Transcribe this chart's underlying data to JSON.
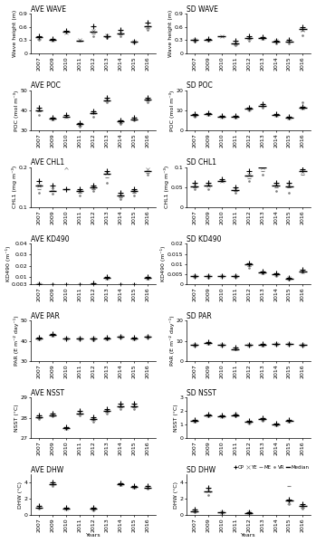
{
  "years": [
    2007,
    2009,
    2010,
    2011,
    2012,
    2013,
    2014,
    2015,
    2016
  ],
  "year_labels": [
    "2007",
    "2009",
    "2010",
    "2011",
    "2012",
    "2013",
    "2014",
    "2015",
    "2016"
  ],
  "panels": [
    {
      "title_left": "AVE WAVE",
      "title_right": "SD WAVE",
      "ylabel_left": "Wave height (m)",
      "ylabel_right": "Wave height (m)",
      "ylim_left": [
        0.0,
        0.9
      ],
      "ylim_right": [
        0.0,
        0.9
      ],
      "yticks_left": [
        0.0,
        0.3,
        0.6,
        0.9
      ],
      "yticks_right": [
        0.0,
        0.3,
        0.6,
        0.9
      ],
      "data_left": {
        "CP": [
          0.38,
          0.32,
          0.5,
          null,
          0.62,
          0.38,
          0.52,
          0.27,
          0.7
        ],
        "YE": [
          0.35,
          0.31,
          0.46,
          0.3,
          0.5,
          0.4,
          0.46,
          0.27,
          0.6
        ],
        "ME": [
          0.33,
          null,
          null,
          0.29,
          0.44,
          0.36,
          0.42,
          0.26,
          0.57
        ],
        "VR": [
          0.3,
          0.3,
          null,
          0.28,
          0.38,
          0.34,
          0.38,
          0.25,
          0.53
        ],
        "median": [
          0.37,
          0.31,
          0.48,
          0.29,
          0.49,
          0.38,
          0.45,
          0.26,
          0.62
        ]
      },
      "data_right": {
        "CP": [
          0.31,
          0.32,
          null,
          0.28,
          0.38,
          0.36,
          0.29,
          0.31,
          0.6
        ],
        "YE": [
          0.3,
          0.31,
          0.38,
          0.22,
          0.35,
          0.35,
          0.28,
          0.28,
          0.53
        ],
        "ME": [
          0.29,
          null,
          null,
          0.2,
          0.32,
          0.34,
          0.26,
          0.26,
          0.5
        ],
        "VR": [
          0.27,
          0.29,
          null,
          0.18,
          0.28,
          0.32,
          0.23,
          0.22,
          0.4
        ],
        "median": [
          0.3,
          0.31,
          0.38,
          0.22,
          0.34,
          0.35,
          0.27,
          0.27,
          0.54
        ]
      }
    },
    {
      "title_left": "AVE POC",
      "title_right": "SD POC",
      "ylabel_left": "POC (mol m⁻³)",
      "ylabel_right": "POC (mol m⁻³)",
      "ylim_left": [
        30,
        50
      ],
      "ylim_right": [
        0,
        20
      ],
      "yticks_left": [
        30,
        40,
        50
      ],
      "yticks_right": [
        0,
        10,
        20
      ],
      "data_left": {
        "CP": [
          41.5,
          36.5,
          37.5,
          33.5,
          39.5,
          46.0,
          35.0,
          36.5,
          46.0
        ],
        "YE": [
          40.5,
          36.0,
          37.0,
          33.0,
          39.0,
          45.5,
          34.5,
          36.0,
          45.5
        ],
        "ME": [
          39.5,
          null,
          null,
          32.5,
          38.5,
          45.0,
          33.5,
          35.5,
          45.0
        ],
        "VR": [
          37.5,
          35.5,
          null,
          32.0,
          37.0,
          44.0,
          33.0,
          35.0,
          44.0
        ],
        "median": [
          40.0,
          36.0,
          37.0,
          33.0,
          38.5,
          45.0,
          34.5,
          35.5,
          45.5
        ]
      },
      "data_right": {
        "CP": [
          8.0,
          8.8,
          7.2,
          7.2,
          11.5,
          13.0,
          8.2,
          6.8,
          11.8
        ],
        "YE": [
          7.5,
          8.3,
          7.0,
          7.0,
          11.0,
          12.5,
          7.8,
          6.5,
          11.2
        ],
        "ME": [
          7.2,
          null,
          null,
          6.7,
          10.5,
          12.0,
          7.5,
          6.2,
          10.8
        ],
        "VR": [
          7.0,
          7.5,
          null,
          6.3,
          10.0,
          11.5,
          7.2,
          6.0,
          14.0
        ],
        "median": [
          7.5,
          8.2,
          7.0,
          7.0,
          11.0,
          12.3,
          7.8,
          6.5,
          11.3
        ]
      }
    },
    {
      "title_left": "AVE CHL1",
      "title_right": "SD CHL1",
      "ylabel_left": "CHL1 (mg m⁻³)",
      "ylabel_right": "CHL1 (mg m⁻³)",
      "ylim_left": [
        0.1,
        0.2
      ],
      "ylim_right": [
        0.0,
        0.1
      ],
      "yticks_left": [
        0.1,
        0.2
      ],
      "yticks_right": [
        0.0,
        0.05,
        0.1
      ],
      "data_left": {
        "CP": [
          0.165,
          0.155,
          0.145,
          0.145,
          0.155,
          0.19,
          0.135,
          0.145,
          0.21
        ],
        "YE": [
          0.155,
          0.145,
          0.2,
          0.14,
          0.15,
          0.185,
          0.13,
          0.14,
          0.195
        ],
        "ME": [
          0.145,
          null,
          null,
          0.135,
          0.145,
          0.175,
          0.125,
          0.135,
          0.185
        ],
        "VR": [
          0.135,
          0.133,
          null,
          0.13,
          0.14,
          0.16,
          0.12,
          0.13,
          0.18
        ],
        "median": [
          0.155,
          0.14,
          0.145,
          0.14,
          0.15,
          0.183,
          0.13,
          0.14,
          0.19
        ]
      },
      "data_right": {
        "CP": [
          0.06,
          0.06,
          0.07,
          0.05,
          0.09,
          0.105,
          0.06,
          0.06,
          0.095
        ],
        "YE": [
          0.055,
          0.055,
          0.065,
          0.045,
          0.08,
          0.098,
          0.055,
          0.055,
          0.088
        ],
        "ME": [
          0.05,
          null,
          null,
          0.04,
          0.072,
          0.09,
          0.05,
          0.05,
          0.082
        ],
        "VR": [
          0.045,
          0.045,
          null,
          0.035,
          0.065,
          0.08,
          0.04,
          0.035,
          0.12
        ],
        "median": [
          0.052,
          0.055,
          0.065,
          0.042,
          0.078,
          0.098,
          0.053,
          0.052,
          0.09
        ]
      }
    },
    {
      "title_left": "AVE KD490",
      "title_right": "SD KD490",
      "ylabel_left": "KD490 (m⁻¹)",
      "ylabel_right": "KD490 (m⁻¹)",
      "ylim_left": [
        0.003,
        0.04
      ],
      "ylim_right": [
        0.0,
        0.02
      ],
      "yticks_left": [
        0.003,
        0.01,
        0.02,
        0.03,
        0.04
      ],
      "yticks_right": [
        0.0,
        0.005,
        0.01,
        0.015,
        0.02
      ],
      "data_left": {
        "CP": [
          0.0033,
          0.0026,
          0.0026,
          0.0021,
          0.0036,
          0.01,
          0.0026,
          0.0026,
          0.01
        ],
        "YE": [
          0.0031,
          0.0025,
          0.0025,
          0.002,
          0.0032,
          0.009,
          0.0025,
          0.0025,
          0.009
        ],
        "ME": [
          0.0029,
          null,
          null,
          0.0021,
          0.003,
          0.0085,
          0.0023,
          0.0024,
          0.0085
        ],
        "VR": [
          0.0028,
          0.0023,
          null,
          0.002,
          0.0028,
          0.008,
          0.0022,
          0.0023,
          0.0082
        ],
        "median": [
          0.003,
          0.0025,
          0.0025,
          0.0021,
          0.0031,
          0.009,
          0.0024,
          0.0025,
          0.009
        ]
      },
      "data_right": {
        "CP": [
          0.0042,
          0.0042,
          0.0042,
          0.0042,
          0.0102,
          0.0062,
          0.0052,
          0.0032,
          0.0072
        ],
        "YE": [
          0.004,
          0.004,
          0.004,
          0.004,
          0.0098,
          0.006,
          0.005,
          0.003,
          0.0065
        ],
        "ME": [
          0.0038,
          null,
          null,
          0.0038,
          0.009,
          0.0057,
          0.0048,
          0.0028,
          0.0062
        ],
        "VR": [
          0.0035,
          0.0032,
          null,
          0.0036,
          0.0082,
          0.0052,
          0.004,
          0.0022,
          0.0058
        ],
        "median": [
          0.004,
          0.004,
          0.004,
          0.004,
          0.0097,
          0.0059,
          0.0049,
          0.0029,
          0.0065
        ]
      }
    },
    {
      "title_left": "AVE PAR",
      "title_right": "SD PAR",
      "ylabel_left": "PAR (E m⁻² day⁻¹)",
      "ylabel_right": "PAR (E m⁻² day⁻¹)",
      "ylim_left": [
        30,
        50
      ],
      "ylim_right": [
        0,
        20
      ],
      "yticks_left": [
        30,
        40,
        50
      ],
      "yticks_right": [
        0,
        10,
        20
      ],
      "data_left": {
        "CP": [
          41.5,
          43.5,
          41.2,
          41.0,
          41.2,
          41.5,
          42.2,
          41.5,
          42.2
        ],
        "YE": [
          41.2,
          43.0,
          41.0,
          41.0,
          41.0,
          41.2,
          42.0,
          41.2,
          42.0
        ],
        "ME": [
          41.0,
          null,
          null,
          41.0,
          40.8,
          41.0,
          41.8,
          41.0,
          41.8
        ],
        "VR": [
          40.8,
          42.5,
          41.0,
          40.8,
          40.5,
          40.8,
          41.5,
          40.8,
          41.5
        ],
        "median": [
          41.0,
          43.0,
          41.0,
          41.0,
          41.0,
          41.0,
          42.0,
          41.0,
          42.0
        ]
      },
      "data_right": {
        "CP": [
          8.2,
          9.2,
          8.2,
          6.5,
          8.2,
          8.5,
          8.7,
          8.7,
          8.2
        ],
        "YE": [
          8.0,
          9.0,
          8.0,
          6.2,
          8.0,
          8.2,
          8.5,
          8.5,
          8.0
        ],
        "ME": [
          7.8,
          null,
          null,
          6.0,
          7.8,
          8.0,
          8.2,
          8.3,
          7.8
        ],
        "VR": [
          7.5,
          8.5,
          7.8,
          5.8,
          7.5,
          7.8,
          8.0,
          8.0,
          7.5
        ],
        "median": [
          8.0,
          9.0,
          8.0,
          6.0,
          8.0,
          8.2,
          8.5,
          8.5,
          8.0
        ]
      }
    },
    {
      "title_left": "AVE NSST",
      "title_right": "SD NSST",
      "ylabel_left": "NSST (°C)",
      "ylabel_right": "NSST (°C)",
      "ylim_left": [
        27,
        29
      ],
      "ylim_right": [
        0,
        3
      ],
      "yticks_left": [
        27,
        28,
        29
      ],
      "yticks_right": [
        0,
        1,
        2,
        3
      ],
      "data_left": {
        "CP": [
          28.12,
          28.22,
          27.55,
          28.32,
          28.02,
          28.42,
          28.68,
          28.68,
          null
        ],
        "YE": [
          28.05,
          28.15,
          27.5,
          28.25,
          27.95,
          28.35,
          28.6,
          28.6,
          null
        ],
        "ME": [
          28.0,
          null,
          null,
          28.2,
          27.9,
          28.3,
          28.52,
          28.52,
          null
        ],
        "VR": [
          27.95,
          28.05,
          27.45,
          28.1,
          27.82,
          28.22,
          28.45,
          28.45,
          null
        ],
        "median": [
          28.02,
          28.13,
          27.5,
          28.22,
          27.92,
          28.33,
          28.57,
          28.57,
          null
        ]
      },
      "data_right": {
        "CP": [
          1.35,
          1.75,
          1.65,
          1.75,
          1.25,
          1.45,
          1.05,
          1.35,
          null
        ],
        "YE": [
          1.3,
          1.7,
          1.62,
          1.72,
          1.2,
          1.4,
          1.0,
          1.3,
          null
        ],
        "ME": [
          1.25,
          null,
          null,
          1.68,
          1.15,
          1.35,
          0.98,
          1.25,
          null
        ],
        "VR": [
          1.2,
          1.62,
          1.58,
          1.62,
          1.1,
          1.28,
          0.95,
          1.22,
          null
        ],
        "median": [
          1.27,
          1.68,
          1.62,
          1.7,
          1.18,
          1.38,
          1.0,
          1.28,
          null
        ]
      }
    },
    {
      "title_left": "AVE DHW",
      "title_right": "SD DHW",
      "ylabel_left": "DHW (°C)",
      "ylabel_right": "DHW (°C)",
      "ylim_left": [
        0,
        5
      ],
      "ylim_right": [
        0,
        5
      ],
      "yticks_left": [
        0,
        2,
        4
      ],
      "yticks_right": [
        0,
        2,
        4
      ],
      "data_left": {
        "CP": [
          1.05,
          4.05,
          0.85,
          null,
          0.85,
          null,
          3.85,
          3.6,
          3.55
        ],
        "YE": [
          0.95,
          3.85,
          0.75,
          null,
          0.75,
          null,
          3.8,
          3.5,
          3.45
        ],
        "ME": [
          0.85,
          null,
          null,
          null,
          0.65,
          null,
          3.75,
          3.4,
          3.35
        ],
        "VR": [
          0.75,
          3.6,
          null,
          null,
          0.55,
          null,
          3.68,
          3.3,
          3.25
        ],
        "median": [
          0.9,
          3.8,
          0.8,
          null,
          0.72,
          null,
          3.8,
          3.5,
          3.4
        ]
      },
      "data_right": {
        "CP": [
          0.6,
          3.3,
          0.35,
          null,
          0.35,
          null,
          null,
          1.9,
          1.3
        ],
        "YE": [
          0.5,
          3.0,
          0.28,
          null,
          0.28,
          null,
          null,
          1.6,
          1.1
        ],
        "ME": [
          0.4,
          null,
          null,
          null,
          0.22,
          null,
          null,
          3.6,
          0.9
        ],
        "VR": [
          0.3,
          2.5,
          null,
          null,
          0.18,
          null,
          null,
          1.3,
          0.75
        ],
        "median": [
          0.45,
          2.9,
          0.3,
          null,
          0.25,
          null,
          null,
          1.8,
          1.05
        ]
      }
    }
  ],
  "background_color": "#ffffff",
  "fontsize_title": 5.5,
  "fontsize_tick": 4.5,
  "fontsize_ylabel": 4.5,
  "fontsize_legend": 4.0
}
